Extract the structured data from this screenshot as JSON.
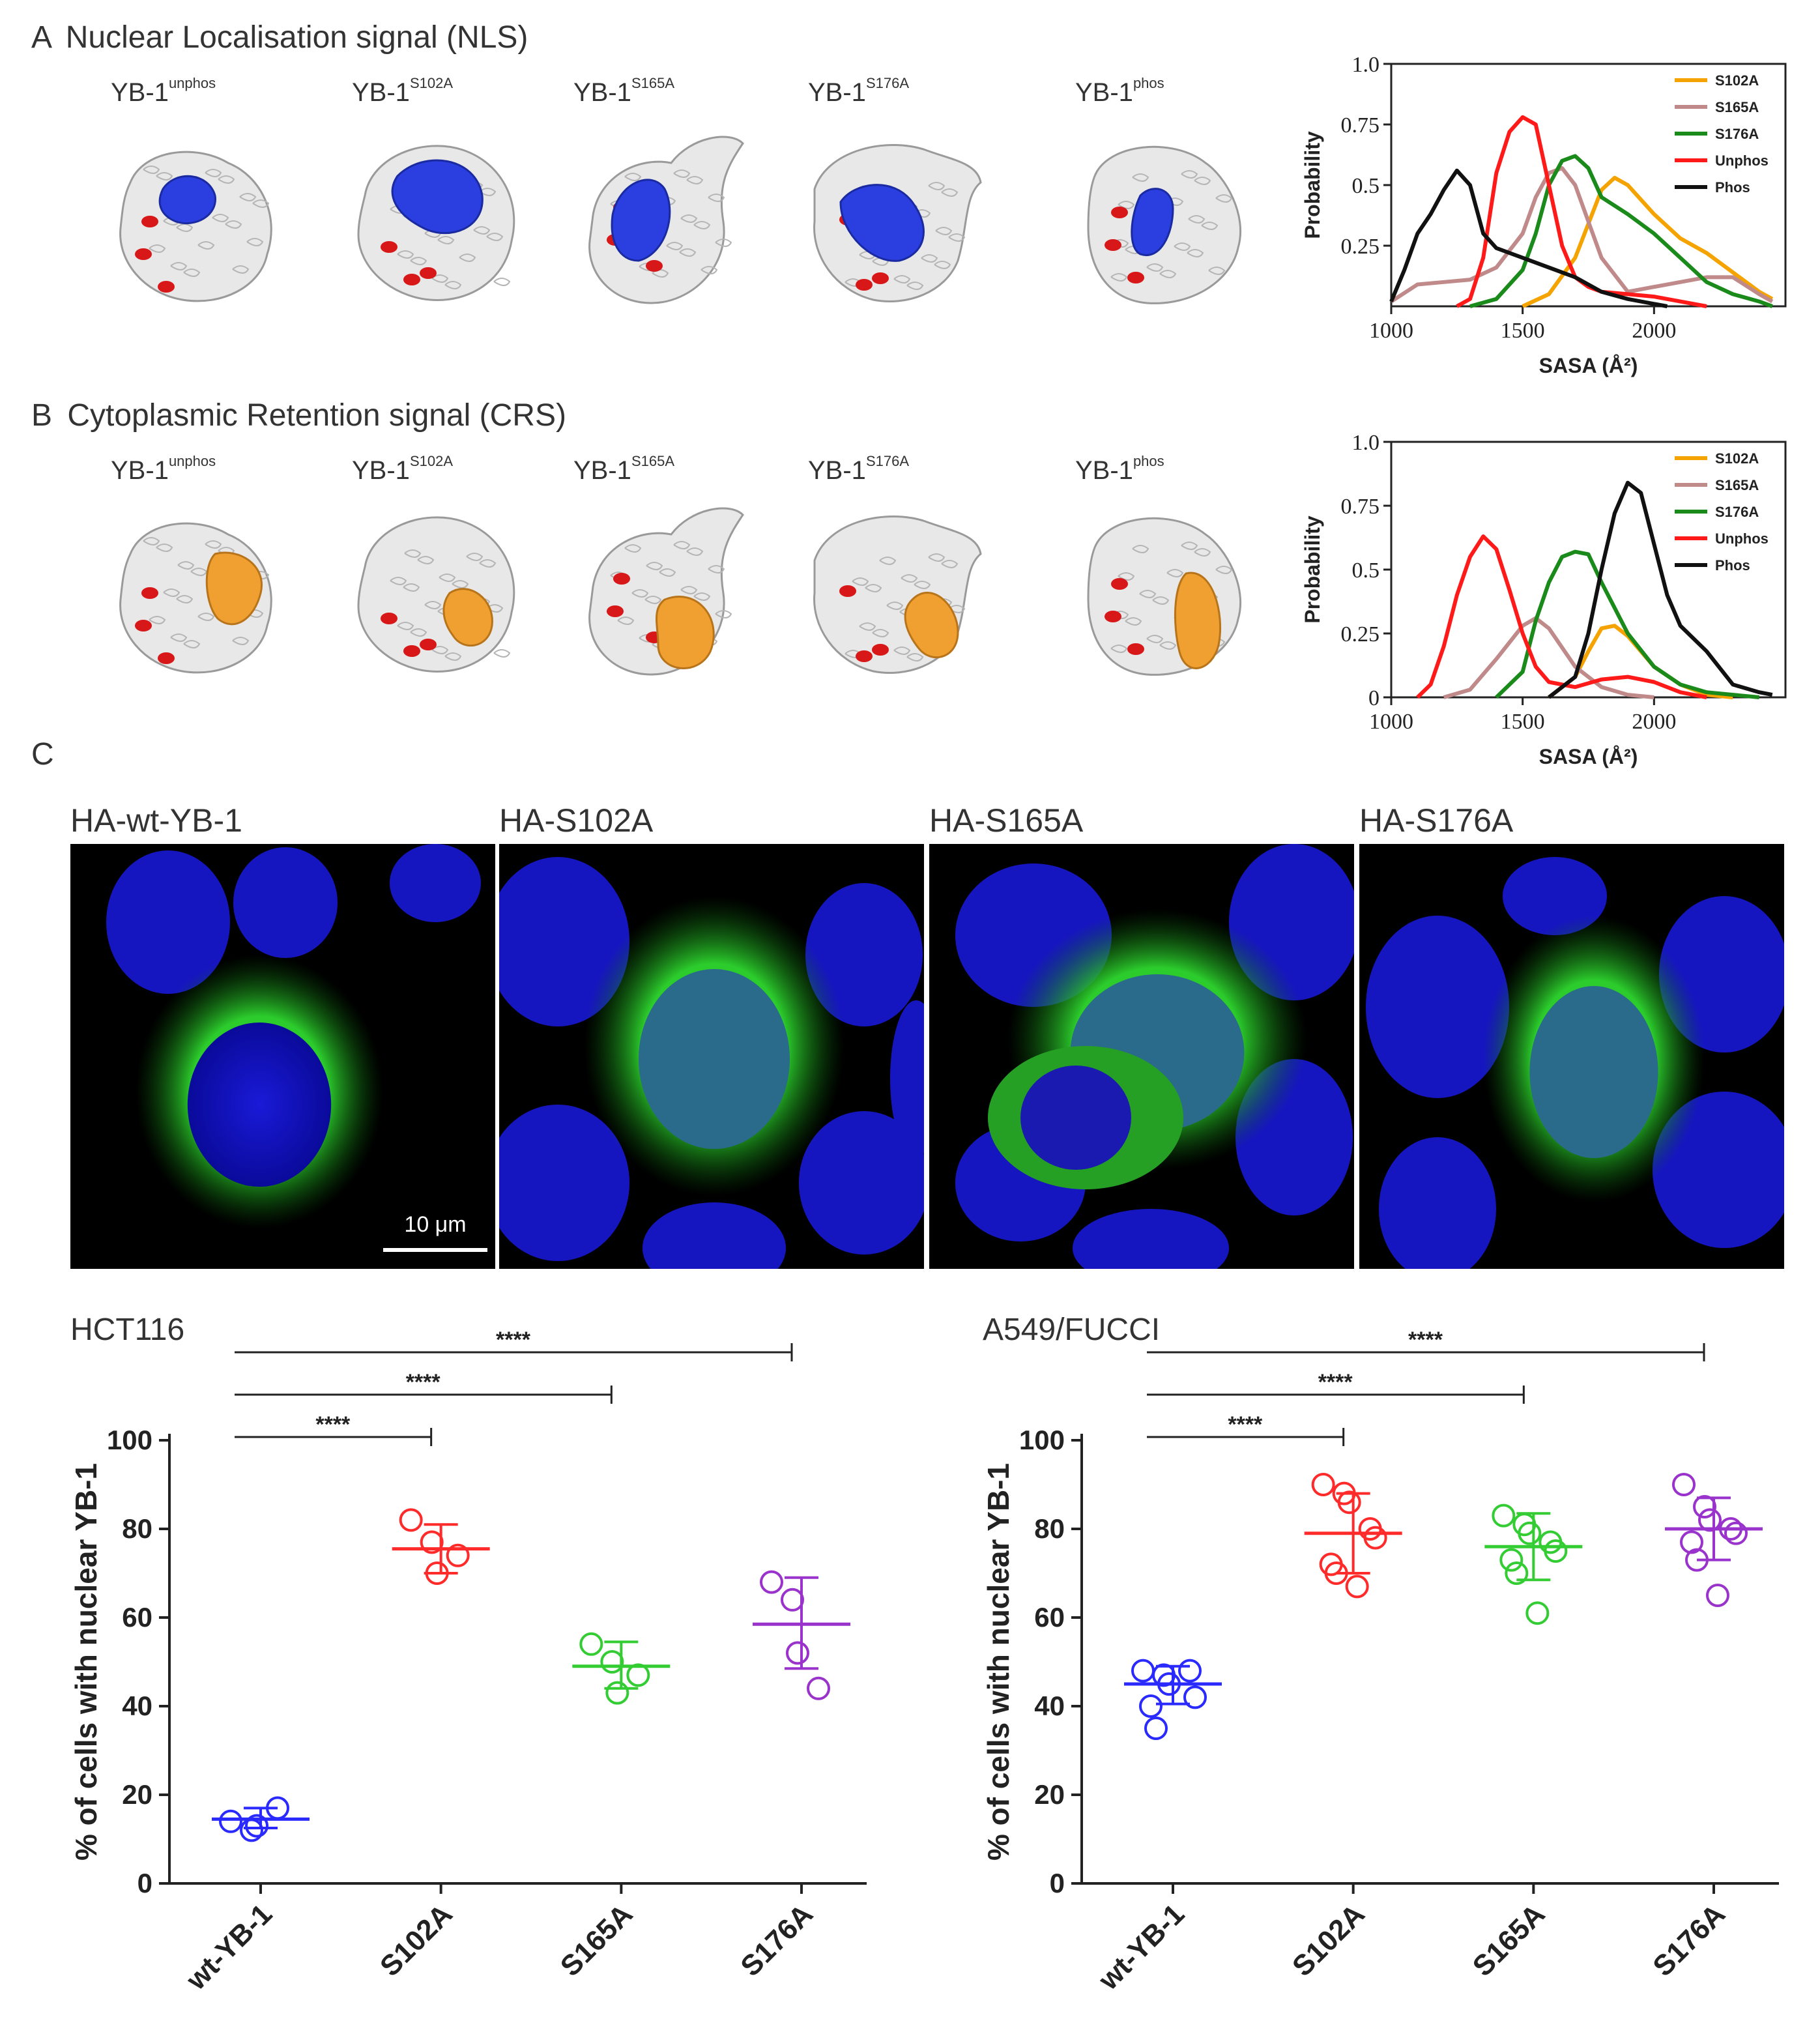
{
  "panel_a": {
    "letter": "A",
    "title": "Nuclear Localisation signal (NLS)",
    "structures": [
      {
        "base": "YB-1",
        "sup": "unphos"
      },
      {
        "base": "YB-1",
        "sup": "S102A"
      },
      {
        "base": "YB-1",
        "sup": "S165A"
      },
      {
        "base": "YB-1",
        "sup": "S176A"
      },
      {
        "base": "YB-1",
        "sup": "phos"
      }
    ],
    "highlight_color": "#2b3fe0"
  },
  "panel_b": {
    "letter": "B",
    "title": "Cytoplasmic  Retention signal (CRS)",
    "structures": [
      {
        "base": "YB-1",
        "sup": "unphos"
      },
      {
        "base": "YB-1",
        "sup": "S102A"
      },
      {
        "base": "YB-1",
        "sup": "S165A"
      },
      {
        "base": "YB-1",
        "sup": "S176A"
      },
      {
        "base": "YB-1",
        "sup": "phos"
      }
    ],
    "highlight_color": "#f0a030"
  },
  "panel_c": {
    "letter": "C",
    "images": [
      {
        "label": "HA-wt-YB-1"
      },
      {
        "label": "HA-S102A"
      },
      {
        "label": "HA-S165A"
      },
      {
        "label": "HA-S176A"
      }
    ],
    "scale_bar": "10 μm"
  },
  "colors": {
    "s102a": "#f5a300",
    "s165a": "#c08a8a",
    "s176a": "#1a8a1a",
    "unphos": "#ff1a1a",
    "phos": "#111111",
    "scatter_wt": "#2a2aff",
    "scatter_s102a": "#ff2a2a",
    "scatter_s165a": "#33cc33",
    "scatter_s176a": "#9933cc"
  },
  "chart_data": [
    {
      "id": "sasa_nls",
      "type": "line",
      "title": "",
      "xlabel": "SASA (Å²)",
      "ylabel": "Probability",
      "xlim": [
        1000,
        2500
      ],
      "ylim": [
        0,
        1.0
      ],
      "xticks": [
        "1000",
        "1500",
        "2000"
      ],
      "yticks": [
        "0.25",
        "0.5",
        "0.75",
        "1.0"
      ],
      "legend_position": "top-right",
      "series": [
        {
          "name": "S102A",
          "color_key": "s102a",
          "x": [
            1500,
            1600,
            1700,
            1800,
            1850,
            1900,
            2000,
            2100,
            2200,
            2300,
            2400,
            2450
          ],
          "y": [
            0,
            0.05,
            0.2,
            0.48,
            0.53,
            0.5,
            0.38,
            0.28,
            0.22,
            0.14,
            0.06,
            0.03
          ]
        },
        {
          "name": "S165A",
          "color_key": "s165a",
          "x": [
            1000,
            1100,
            1200,
            1300,
            1400,
            1500,
            1550,
            1600,
            1650,
            1700,
            1800,
            1900,
            2000,
            2100,
            2200,
            2300,
            2400,
            2450
          ],
          "y": [
            0.02,
            0.09,
            0.1,
            0.11,
            0.16,
            0.3,
            0.45,
            0.55,
            0.57,
            0.5,
            0.2,
            0.06,
            0.08,
            0.1,
            0.12,
            0.12,
            0.05,
            0.02
          ]
        },
        {
          "name": "S176A",
          "color_key": "s176a",
          "x": [
            1300,
            1400,
            1500,
            1550,
            1600,
            1650,
            1700,
            1750,
            1800,
            1900,
            2000,
            2100,
            2200,
            2300,
            2400,
            2450
          ],
          "y": [
            0,
            0.03,
            0.15,
            0.3,
            0.5,
            0.6,
            0.62,
            0.57,
            0.45,
            0.38,
            0.3,
            0.2,
            0.1,
            0.05,
            0.02,
            0
          ]
        },
        {
          "name": "Unphos",
          "color_key": "unphos",
          "x": [
            1250,
            1300,
            1350,
            1400,
            1450,
            1500,
            1550,
            1600,
            1650,
            1700,
            1750,
            1800,
            1900,
            2000,
            2100,
            2200
          ],
          "y": [
            0,
            0.03,
            0.2,
            0.55,
            0.72,
            0.78,
            0.75,
            0.5,
            0.25,
            0.12,
            0.08,
            0.06,
            0.05,
            0.04,
            0.02,
            0
          ]
        },
        {
          "name": "Phos",
          "color_key": "phos",
          "x": [
            1000,
            1050,
            1100,
            1150,
            1200,
            1250,
            1300,
            1350,
            1400,
            1500,
            1600,
            1700,
            1800,
            1900,
            2000,
            2050
          ],
          "y": [
            0.02,
            0.15,
            0.3,
            0.38,
            0.48,
            0.56,
            0.5,
            0.3,
            0.24,
            0.2,
            0.16,
            0.12,
            0.06,
            0.03,
            0.01,
            0
          ]
        }
      ]
    },
    {
      "id": "sasa_crs",
      "type": "line",
      "title": "",
      "xlabel": "SASA (Å²)",
      "ylabel": "Probability",
      "xlim": [
        1000,
        2500
      ],
      "ylim": [
        0,
        1.0
      ],
      "xticks": [
        "1000",
        "1500",
        "2000"
      ],
      "yticks": [
        "0",
        "0.25",
        "0.5",
        "0.75",
        "1.0"
      ],
      "legend_position": "top-right",
      "series": [
        {
          "name": "S102A",
          "color_key": "s102a",
          "x": [
            1600,
            1700,
            1750,
            1800,
            1850,
            1900,
            2000,
            2100,
            2200,
            2300
          ],
          "y": [
            0,
            0.08,
            0.18,
            0.27,
            0.28,
            0.24,
            0.12,
            0.05,
            0.01,
            0
          ]
        },
        {
          "name": "S165A",
          "color_key": "s165a",
          "x": [
            1200,
            1300,
            1400,
            1500,
            1550,
            1600,
            1700,
            1800,
            1900,
            2000
          ],
          "y": [
            0,
            0.03,
            0.15,
            0.28,
            0.31,
            0.27,
            0.12,
            0.04,
            0.01,
            0
          ]
        },
        {
          "name": "S176A",
          "color_key": "s176a",
          "x": [
            1400,
            1500,
            1550,
            1600,
            1650,
            1700,
            1750,
            1800,
            1900,
            2000,
            2100,
            2200,
            2300,
            2400
          ],
          "y": [
            0,
            0.1,
            0.3,
            0.45,
            0.55,
            0.57,
            0.56,
            0.45,
            0.25,
            0.12,
            0.05,
            0.02,
            0.01,
            0
          ]
        },
        {
          "name": "Unphos",
          "color_key": "unphos",
          "x": [
            1100,
            1150,
            1200,
            1250,
            1300,
            1350,
            1400,
            1450,
            1500,
            1550,
            1600,
            1700,
            1800,
            1900,
            2000,
            2100,
            2200
          ],
          "y": [
            0,
            0.05,
            0.2,
            0.4,
            0.55,
            0.63,
            0.58,
            0.42,
            0.25,
            0.12,
            0.06,
            0.04,
            0.07,
            0.08,
            0.06,
            0.02,
            0
          ]
        },
        {
          "name": "Phos",
          "color_key": "phos",
          "x": [
            1600,
            1700,
            1750,
            1800,
            1850,
            1900,
            1950,
            2000,
            2050,
            2100,
            2200,
            2300,
            2400,
            2450
          ],
          "y": [
            0,
            0.08,
            0.25,
            0.5,
            0.72,
            0.84,
            0.8,
            0.6,
            0.4,
            0.28,
            0.18,
            0.05,
            0.02,
            0.01
          ]
        }
      ]
    },
    {
      "id": "hct116",
      "type": "scatter",
      "title": "HCT116",
      "xlabel": "",
      "ylabel": "% of cells with nuclear YB-1",
      "ylim": [
        0,
        100
      ],
      "yticks": [
        "0",
        "20",
        "40",
        "60",
        "80",
        "100"
      ],
      "categories": [
        "wt-YB-1",
        "S102A",
        "S165A",
        "S176A"
      ],
      "color_keys": [
        "scatter_wt",
        "scatter_s102a",
        "scatter_s165a",
        "scatter_s176a"
      ],
      "points": [
        [
          14,
          12,
          13,
          17
        ],
        [
          82,
          77,
          70,
          74
        ],
        [
          54,
          50,
          43,
          47
        ],
        [
          68,
          64,
          52,
          44
        ]
      ],
      "means": [
        14.5,
        75.5,
        49,
        58.5
      ],
      "sd_upper": [
        17,
        81,
        54.5,
        69
      ],
      "sd_lower": [
        12.5,
        70,
        44,
        48.5
      ],
      "significance": [
        {
          "from": "wt-YB-1",
          "to": "S102A",
          "label": "****"
        },
        {
          "from": "wt-YB-1",
          "to": "S165A",
          "label": "****"
        },
        {
          "from": "wt-YB-1",
          "to": "S176A",
          "label": "****"
        }
      ]
    },
    {
      "id": "a549_fucci",
      "type": "scatter",
      "title": "A549/FUCCI",
      "xlabel": "",
      "ylabel": "% of cells with nuclear YB-1",
      "ylim": [
        0,
        100
      ],
      "yticks": [
        "0",
        "20",
        "40",
        "60",
        "80",
        "100"
      ],
      "categories": [
        "wt-YB-1",
        "S102A",
        "S165A",
        "S176A"
      ],
      "color_keys": [
        "scatter_wt",
        "scatter_s102a",
        "scatter_s165a",
        "scatter_s176a"
      ],
      "points": [
        [
          48,
          47,
          45,
          48,
          42,
          40,
          35
        ],
        [
          90,
          88,
          86,
          80,
          78,
          72,
          70,
          67
        ],
        [
          83,
          81,
          79,
          77,
          75,
          73,
          70,
          61
        ],
        [
          90,
          85,
          82,
          80,
          79,
          77,
          73,
          65
        ]
      ],
      "means": [
        45,
        79,
        76,
        80
      ],
      "sd_upper": [
        49,
        88,
        83.5,
        87
      ],
      "sd_lower": [
        40.5,
        70,
        68.5,
        73
      ],
      "significance": [
        {
          "from": "wt-YB-1",
          "to": "S102A",
          "label": "****"
        },
        {
          "from": "wt-YB-1",
          "to": "S165A",
          "label": "****"
        },
        {
          "from": "wt-YB-1",
          "to": "S176A",
          "label": "****"
        }
      ]
    }
  ]
}
